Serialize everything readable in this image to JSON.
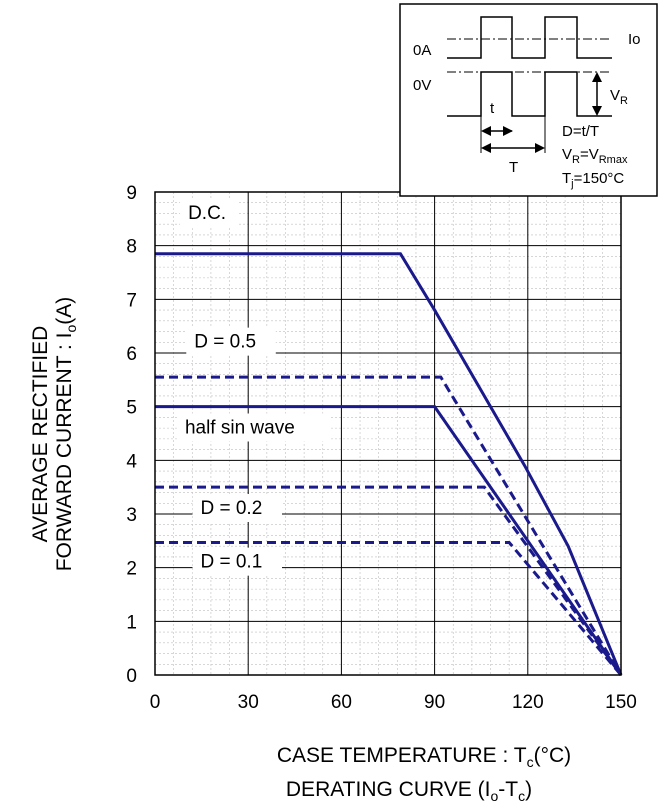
{
  "chart_data": {
    "type": "line",
    "title": "",
    "caption": {
      "main": "DERATING CURVE (I",
      "sub1": "o",
      "mid": "-T",
      "sub2": "c",
      "end": ")"
    },
    "xlabel": {
      "main": "CASE TEMPERATURE : T",
      "sub": "c",
      "end": "(°C)"
    },
    "ylabel": {
      "line1": "AVERAGE RECTIFIED",
      "line2_main": "FORWARD CURRENT : I",
      "line2_sub": "o",
      "line2_end": "(A)"
    },
    "xlim": [
      0,
      150
    ],
    "ylim": [
      0,
      9
    ],
    "x_ticks": [
      0,
      30,
      60,
      90,
      120,
      150
    ],
    "y_ticks": [
      0,
      1,
      2,
      3,
      4,
      5,
      6,
      7,
      8,
      9
    ],
    "minor_grid": true,
    "series": [
      {
        "name": "D.C.",
        "style": "solid",
        "x": [
          0,
          79,
          90,
          119,
          133,
          150
        ],
        "y": [
          7.85,
          7.85,
          6.8,
          3.9,
          2.4,
          0
        ]
      },
      {
        "name": "D = 0.5",
        "style": "dashed",
        "x": [
          0,
          92,
          150
        ],
        "y": [
          5.55,
          5.55,
          0
        ]
      },
      {
        "name": "half sin wave",
        "style": "solid",
        "x": [
          0,
          90,
          150
        ],
        "y": [
          5.0,
          5.0,
          0
        ]
      },
      {
        "name": "D = 0.2",
        "style": "dashed",
        "x": [
          0,
          106,
          150
        ],
        "y": [
          3.5,
          3.5,
          0
        ]
      },
      {
        "name": "D = 0.1",
        "style": "dashed",
        "x": [
          0,
          114,
          150
        ],
        "y": [
          2.47,
          2.47,
          0
        ]
      }
    ],
    "colors": {
      "series": "#1a1a8c",
      "grid_major": "#000000",
      "grid_minor": "#bfbfbf"
    }
  },
  "inset": {
    "label_0a": "0A",
    "label_0v": "0V",
    "label_io": "Io",
    "label_vr_main": "V",
    "label_vr_sub": "R",
    "label_t": "t",
    "label_T": "T",
    "eq1": "D=t/T",
    "eq2_a": "V",
    "eq2_a_sub": "R",
    "eq2_b": "=V",
    "eq2_b_sub": "Rmax",
    "eq3_a": "T",
    "eq3_a_sub": "j",
    "eq3_b": "=150°C"
  }
}
